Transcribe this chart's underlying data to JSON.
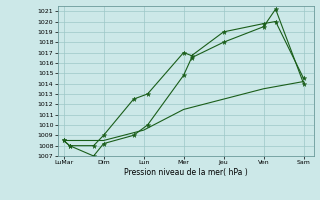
{
  "xlabel": "Pression niveau de la mer( hPa )",
  "xtick_labels": [
    "LuMar",
    "Dim",
    "Lun",
    "Mer",
    "Jeu",
    "Ven",
    "Sam"
  ],
  "xtick_positions": [
    0,
    2,
    4,
    6,
    8,
    10,
    12
  ],
  "ylim": [
    1007,
    1021.5
  ],
  "yticks": [
    1007,
    1008,
    1009,
    1010,
    1011,
    1012,
    1013,
    1014,
    1015,
    1016,
    1017,
    1018,
    1019,
    1020,
    1021
  ],
  "bg_color": "#cce8e8",
  "grid_color": "#9ec8c8",
  "line_color": "#1a5e1a",
  "line1_x": [
    0,
    0.3,
    1.5,
    2.0,
    3.5,
    4.2,
    6.0,
    6.4,
    8.0,
    10.0,
    10.6,
    12.0
  ],
  "line1_y": [
    1008.5,
    1008.0,
    1007.0,
    1008.2,
    1009.0,
    1010.0,
    1014.8,
    1016.5,
    1018.0,
    1019.5,
    1021.2,
    1014.0
  ],
  "line2_x": [
    0,
    0.3,
    1.5,
    2.0,
    3.5,
    4.2,
    6.0,
    6.4,
    8.0,
    10.0,
    10.6,
    12.0
  ],
  "line2_y": [
    1008.5,
    1008.0,
    1008.0,
    1009.0,
    1012.5,
    1013.0,
    1017.0,
    1016.7,
    1019.0,
    1019.8,
    1020.0,
    1014.5
  ],
  "line3_x": [
    0,
    2,
    4,
    6,
    8,
    10,
    12
  ],
  "line3_y": [
    1008.5,
    1008.5,
    1009.5,
    1011.5,
    1012.5,
    1013.5,
    1014.2
  ],
  "marker": "*",
  "marker_size": 3.5,
  "lw": 0.8
}
